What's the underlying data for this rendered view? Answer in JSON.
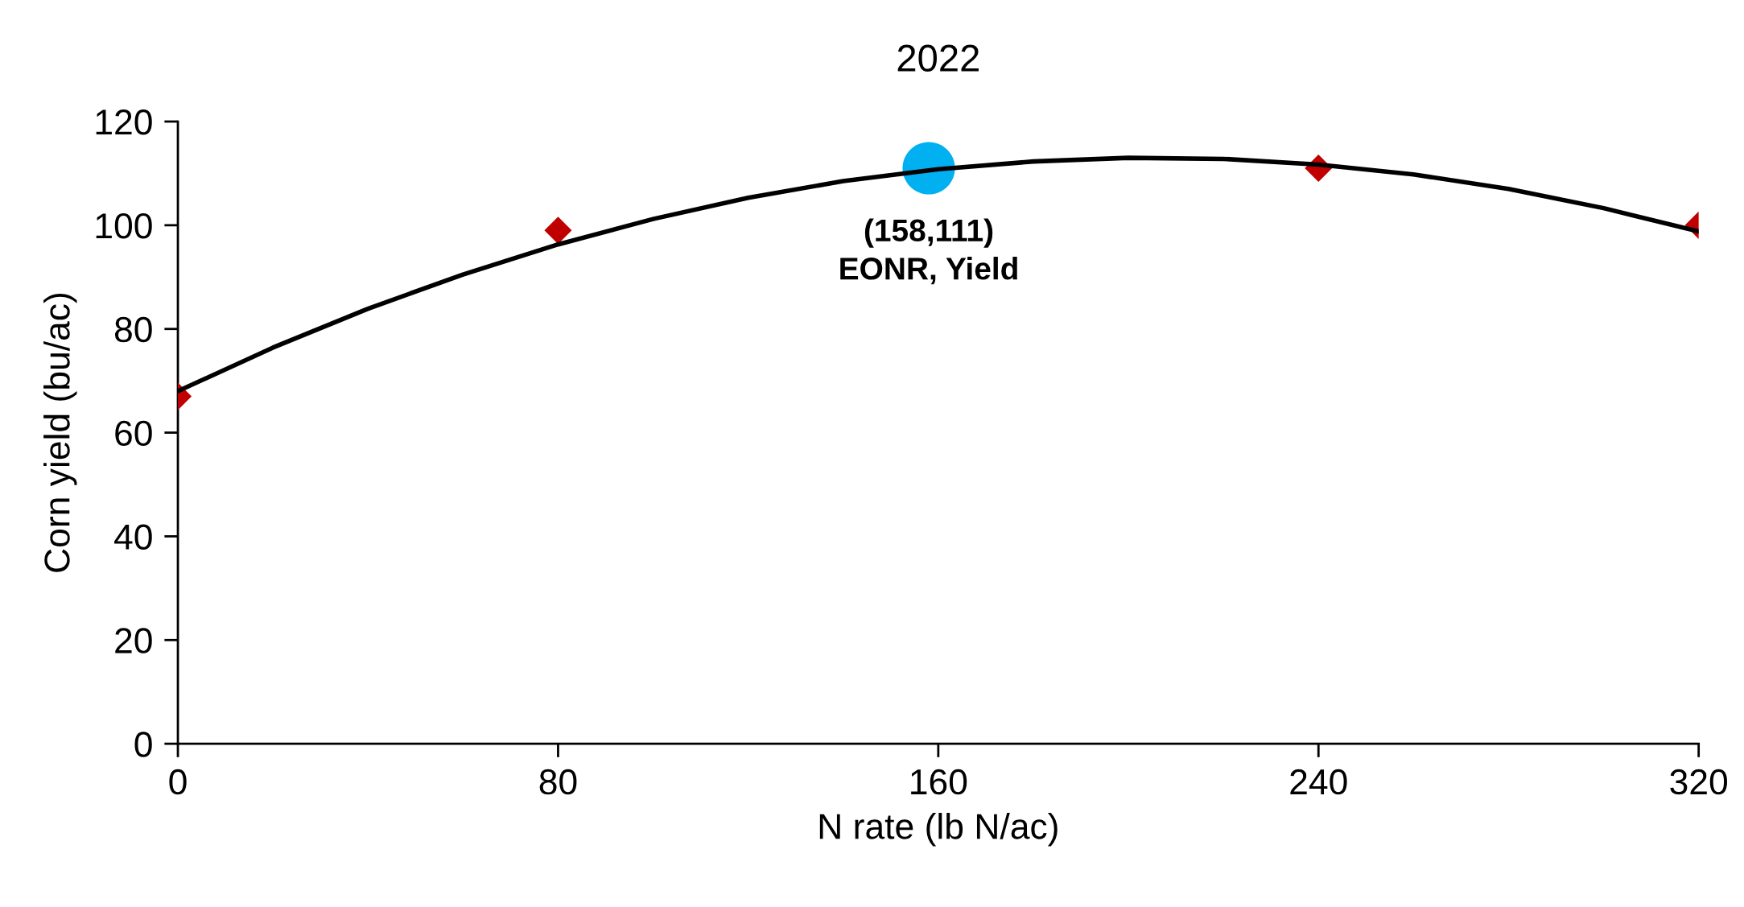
{
  "chart_data": {
    "type": "scatter",
    "title": "2022",
    "xlabel": "N rate (lb N/ac)",
    "ylabel": "Corn yield (bu/ac)",
    "xlim": [
      0,
      320
    ],
    "ylim": [
      0,
      120
    ],
    "xticks": [
      0,
      80,
      160,
      240,
      320
    ],
    "yticks": [
      0,
      20,
      40,
      60,
      80,
      100,
      120
    ],
    "grid": false,
    "legend": false,
    "series": [
      {
        "type": "line",
        "color": "#000000",
        "marker": "none",
        "line_style": "solid",
        "x": [
          0,
          20,
          40,
          60,
          80,
          100,
          120,
          140,
          160,
          180,
          200,
          220,
          240,
          260,
          280,
          300,
          320
        ],
        "values": [
          68.0,
          76.4,
          83.9,
          90.5,
          96.3,
          101.2,
          105.3,
          108.5,
          110.8,
          112.3,
          113.0,
          112.8,
          111.7,
          109.8,
          107.0,
          103.3,
          98.8
        ]
      },
      {
        "color": "#c00000",
        "marker": "diamond",
        "x": [
          0,
          80,
          240,
          320
        ],
        "values": [
          67,
          99,
          111,
          100
        ]
      },
      {
        "color": "#00b0f0",
        "marker": "circle",
        "x": [
          158
        ],
        "values": [
          111
        ]
      }
    ],
    "annotations": [
      {
        "text": "(158,111)\nEONR, Yield",
        "x": 158,
        "y": 111
      }
    ]
  }
}
